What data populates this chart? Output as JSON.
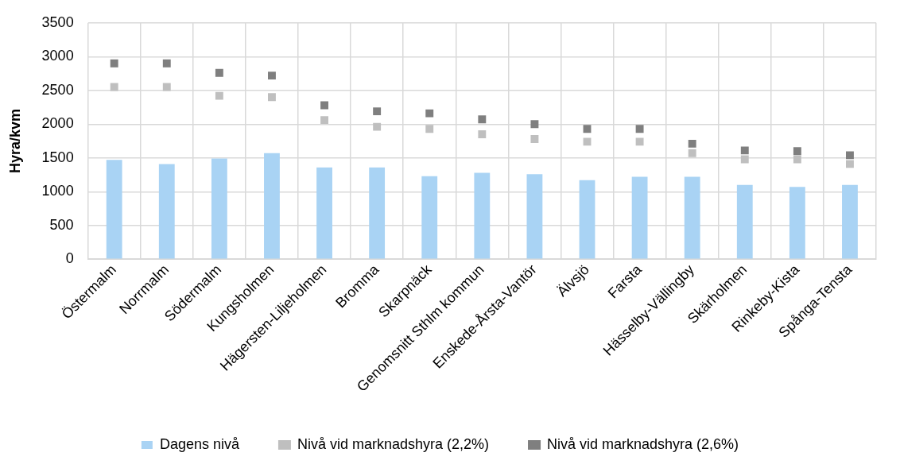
{
  "chart_data": {
    "type": "bar",
    "ylabel": "Hyra/kvm",
    "categories": [
      "Östermalm",
      "Norrmalm",
      "Södermalm",
      "Kungsholmen",
      "Hägersten-Liljeholmen",
      "Bromma",
      "Skarpnäck",
      "Genomsnitt Sthlm kommun",
      "Enskede-Årsta-Vantör",
      "Älvsjö",
      "Farsta",
      "Hässelby-Vällingby",
      "Skärholmen",
      "Rinkeby-Kista",
      "Spånga-Tensta"
    ],
    "series": [
      {
        "name": "Dagens nivå",
        "color": "#a9d3f4",
        "values": [
          1470,
          1410,
          1490,
          1570,
          1360,
          1360,
          1230,
          1280,
          1260,
          1170,
          1220,
          1220,
          1100,
          1070,
          1100
        ]
      },
      {
        "name": "Nivå vid marknadshyra (2,2%)",
        "type": "scatter",
        "marker": "square",
        "color": "#bfbfbf",
        "values": [
          2550,
          2550,
          2420,
          2400,
          2060,
          1960,
          1930,
          1850,
          1780,
          1740,
          1740,
          1570,
          1480,
          1480,
          1410
        ]
      },
      {
        "name": "Nivå vid marknadshyra (2,6%)",
        "type": "scatter",
        "marker": "square",
        "color": "#7f7f7f",
        "values": [
          2900,
          2900,
          2760,
          2720,
          2280,
          2190,
          2160,
          2070,
          2000,
          1930,
          1930,
          1710,
          1610,
          1600,
          1540
        ]
      }
    ],
    "ylim": [
      0,
      3500
    ],
    "yticks": [
      0,
      500,
      1000,
      1500,
      2000,
      2500,
      3000,
      3500
    ],
    "grid": true,
    "legend": "bottom"
  }
}
